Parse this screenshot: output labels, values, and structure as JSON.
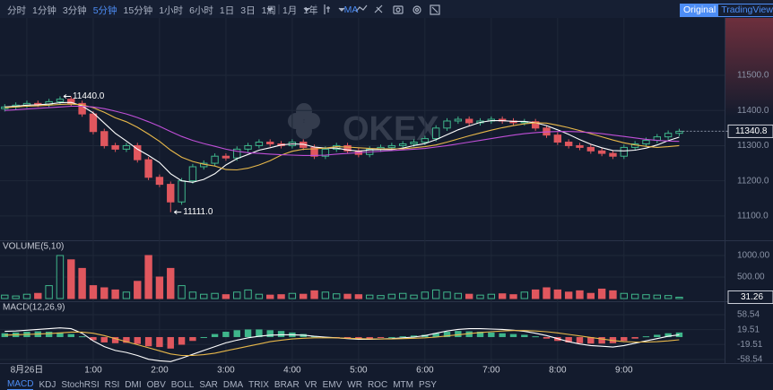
{
  "toolbar": {
    "intervals": [
      "分时",
      "1分钟",
      "3分钟",
      "5分钟",
      "15分钟",
      "1小时",
      "6小时",
      "1日",
      "3日",
      "1周",
      "1月",
      "1年"
    ],
    "active_interval": 3,
    "indicator": "MA",
    "view_tabs": [
      "Original",
      "TradingView"
    ]
  },
  "indicators": [
    "MACD",
    "KDJ",
    "StochRSI",
    "RSI",
    "DMI",
    "OBV",
    "BOLL",
    "SAR",
    "DMA",
    "TRIX",
    "BRAR",
    "VR",
    "EMV",
    "WR",
    "ROC",
    "MTM",
    "PSY"
  ],
  "watermark": "OKEX",
  "chart_data": [
    {
      "type": "candlestick",
      "up_color": "#3fb68b",
      "down_color": "#e0575e",
      "open": [
        11405,
        11410,
        11415,
        11420,
        11418,
        11425,
        11432,
        11420,
        11390,
        11340,
        11300,
        11290,
        11300,
        11260,
        11210,
        11190,
        11140,
        11200,
        11240,
        11250,
        11270,
        11265,
        11290,
        11300,
        11310,
        11305,
        11300,
        11310,
        11295,
        11270,
        11290,
        11300,
        11285,
        11275,
        11290,
        11295,
        11300,
        11305,
        11310,
        11320,
        11350,
        11370,
        11375,
        11365,
        11370,
        11375,
        11370,
        11365,
        11368,
        11350,
        11330,
        11310,
        11300,
        11295,
        11285,
        11278,
        11270,
        11295,
        11305,
        11315,
        11325,
        11335
      ],
      "high": [
        11418,
        11423,
        11428,
        11428,
        11433,
        11440,
        11440,
        11428,
        11398,
        11348,
        11308,
        11308,
        11308,
        11268,
        11218,
        11198,
        11208,
        11248,
        11258,
        11278,
        11278,
        11298,
        11308,
        11318,
        11318,
        11313,
        11318,
        11318,
        11303,
        11298,
        11308,
        11308,
        11293,
        11298,
        11303,
        11308,
        11313,
        11318,
        11328,
        11358,
        11378,
        11383,
        11383,
        11378,
        11383,
        11383,
        11378,
        11376,
        11376,
        11358,
        11338,
        11318,
        11308,
        11303,
        11293,
        11286,
        11303,
        11313,
        11323,
        11333,
        11343,
        11348
      ],
      "low": [
        11397,
        11402,
        11407,
        11410,
        11410,
        11417,
        11412,
        11382,
        11332,
        11292,
        11282,
        11282,
        11252,
        11202,
        11182,
        11111,
        11132,
        11192,
        11232,
        11242,
        11257,
        11257,
        11282,
        11292,
        11297,
        11292,
        11292,
        11287,
        11262,
        11262,
        11282,
        11277,
        11267,
        11267,
        11282,
        11287,
        11292,
        11297,
        11302,
        11312,
        11342,
        11362,
        11357,
        11357,
        11362,
        11362,
        11357,
        11357,
        11342,
        11322,
        11302,
        11292,
        11287,
        11277,
        11270,
        11262,
        11262,
        11287,
        11297,
        11307,
        11317,
        11327
      ],
      "close": [
        11410,
        11415,
        11420,
        11418,
        11425,
        11432,
        11420,
        11390,
        11340,
        11300,
        11290,
        11300,
        11260,
        11210,
        11190,
        11140,
        11200,
        11240,
        11250,
        11270,
        11265,
        11290,
        11300,
        11310,
        11305,
        11300,
        11310,
        11295,
        11270,
        11290,
        11300,
        11285,
        11275,
        11290,
        11295,
        11300,
        11305,
        11310,
        11320,
        11350,
        11370,
        11375,
        11365,
        11370,
        11375,
        11370,
        11365,
        11368,
        11350,
        11330,
        11310,
        11300,
        11295,
        11285,
        11278,
        11270,
        11295,
        11305,
        11315,
        11325,
        11335,
        11340.8
      ],
      "series": [
        {
          "color": "#ffffff",
          "values": [
            11410,
            11412,
            11415,
            11416,
            11418,
            11422,
            11423,
            11413,
            11393,
            11364,
            11335,
            11313,
            11290,
            11272,
            11252,
            11220,
            11200,
            11196,
            11204,
            11220,
            11245,
            11263,
            11275,
            11287,
            11294,
            11302,
            11305,
            11304,
            11296,
            11293,
            11293,
            11288,
            11284,
            11288,
            11289,
            11289,
            11293,
            11300,
            11306,
            11317,
            11331,
            11345,
            11356,
            11366,
            11371,
            11371,
            11369,
            11369,
            11365,
            11357,
            11345,
            11332,
            11317,
            11304,
            11294,
            11286,
            11285,
            11287,
            11293,
            11302,
            11314,
            11324
          ]
        },
        {
          "color": "#e8b84a",
          "values": [
            11408,
            11410,
            11412,
            11413,
            11415,
            11417,
            11418,
            11416,
            11408,
            11395,
            11379,
            11368,
            11352,
            11333,
            11312,
            11287,
            11267,
            11255,
            11247,
            11242,
            11232,
            11231,
            11236,
            11245,
            11257,
            11273,
            11284,
            11290,
            11291,
            11293,
            11297,
            11296,
            11294,
            11292,
            11291,
            11291,
            11291,
            11294,
            11297,
            11302,
            11310,
            11319,
            11328,
            11336,
            11344,
            11351,
            11357,
            11362,
            11365,
            11364,
            11358,
            11351,
            11343,
            11334,
            11325,
            11316,
            11308,
            11302,
            11298,
            11295,
            11297,
            11300
          ]
        },
        {
          "color": "#c04fd8",
          "values": [
            11400,
            11402,
            11404,
            11406,
            11408,
            11410,
            11412,
            11412,
            11410,
            11405,
            11398,
            11390,
            11380,
            11368,
            11355,
            11340,
            11326,
            11315,
            11306,
            11298,
            11290,
            11284,
            11280,
            11278,
            11276,
            11274,
            11273,
            11272,
            11272,
            11273,
            11276,
            11278,
            11280,
            11282,
            11284,
            11286,
            11288,
            11290,
            11292,
            11296,
            11300,
            11305,
            11310,
            11315,
            11320,
            11325,
            11330,
            11334,
            11337,
            11339,
            11340,
            11340,
            11339,
            11337,
            11334,
            11330,
            11326,
            11322,
            11318,
            11315,
            11313,
            11312
          ]
        }
      ],
      "annotations": [
        {
          "value": 11440,
          "label": "11440.0"
        },
        {
          "value": 11111,
          "label": "11111.0"
        }
      ],
      "last_price": 11340.8,
      "ylim": [
        11031,
        11663
      ],
      "yticks": [
        {
          "value": 11100,
          "label": "11100.0"
        },
        {
          "value": 11200,
          "label": "11200.0"
        },
        {
          "value": 11300,
          "label": "11300.0"
        },
        {
          "value": 11400,
          "label": "11400.0"
        },
        {
          "value": 11500,
          "label": "11500.0"
        }
      ]
    },
    {
      "type": "bar",
      "title": "VOLUME(5,10)",
      "values": [
        80,
        60,
        100,
        120,
        300,
        1000,
        900,
        700,
        300,
        250,
        200,
        150,
        400,
        1000,
        500,
        700,
        300,
        150,
        100,
        120,
        90,
        150,
        200,
        100,
        80,
        90,
        120,
        100,
        180,
        150,
        110,
        100,
        90,
        80,
        70,
        100,
        120,
        80,
        150,
        200,
        150,
        120,
        100,
        80,
        100,
        110,
        90,
        150,
        200,
        250,
        200,
        150,
        180,
        120,
        220,
        180,
        120,
        100,
        90,
        80,
        70,
        31.26
      ],
      "last_value": 31.26,
      "ylim": [
        0,
        1312
      ],
      "yticks": [
        {
          "value": 500,
          "label": "500.00"
        },
        {
          "value": 1000,
          "label": "1000.00"
        }
      ]
    },
    {
      "type": "macd",
      "title": "MACD(12,26,9)",
      "histogram": [
        10,
        12,
        14,
        15,
        14,
        12,
        8,
        2,
        -8,
        -14,
        -16,
        -15,
        -18,
        -24,
        -26,
        -30,
        -20,
        -10,
        0,
        8,
        14,
        18,
        20,
        20,
        18,
        16,
        12,
        8,
        2,
        0,
        -2,
        -4,
        -5,
        -4,
        -2,
        0,
        2,
        4,
        6,
        10,
        14,
        16,
        15,
        14,
        12,
        10,
        8,
        6,
        2,
        -4,
        -10,
        -14,
        -16,
        -17,
        -17,
        -16,
        -10,
        -4,
        2,
        6,
        10,
        12
      ],
      "series": [
        {
          "color": "#ffffff",
          "values": [
            15,
            16,
            18,
            20,
            22,
            24,
            22,
            10,
            -10,
            -25,
            -35,
            -40,
            -48,
            -58,
            -62,
            -64,
            -55,
            -45,
            -35,
            -25,
            -15,
            -8,
            -2,
            2,
            5,
            6,
            6,
            5,
            2,
            0,
            -2,
            -4,
            -6,
            -6,
            -5,
            -4,
            -2,
            0,
            4,
            10,
            16,
            20,
            22,
            22,
            21,
            20,
            18,
            15,
            10,
            4,
            -4,
            -12,
            -18,
            -22,
            -24,
            -26,
            -22,
            -16,
            -10,
            -4,
            2,
            6
          ]
        },
        {
          "color": "#e8b84a",
          "values": [
            5,
            6,
            7,
            8,
            9,
            11,
            13,
            13,
            10,
            4,
            -4,
            -12,
            -20,
            -28,
            -36,
            -44,
            -48,
            -48,
            -46,
            -42,
            -36,
            -30,
            -24,
            -18,
            -12,
            -8,
            -5,
            -3,
            -2,
            -2,
            -2,
            -3,
            -4,
            -5,
            -5,
            -5,
            -4,
            -3,
            -2,
            0,
            3,
            6,
            9,
            12,
            14,
            16,
            17,
            17,
            16,
            14,
            11,
            7,
            3,
            -1,
            -5,
            -9,
            -12,
            -13,
            -13,
            -12,
            -10,
            -7
          ]
        }
      ],
      "ylim": [
        -68,
        89
      ],
      "yticks": [
        58.54,
        19.51,
        -19.51,
        -58.54
      ],
      "xlim": [
        -0.43,
        65.1
      ],
      "xticks": [
        {
          "value": 2,
          "label": "8月26日"
        },
        {
          "value": 8,
          "label": "1:00"
        },
        {
          "value": 14,
          "label": "2:00"
        },
        {
          "value": 20,
          "label": "3:00"
        },
        {
          "value": 26,
          "label": "4:00"
        },
        {
          "value": 32,
          "label": "5:00"
        },
        {
          "value": 38,
          "label": "6:00"
        },
        {
          "value": 44,
          "label": "7:00"
        },
        {
          "value": 50,
          "label": "8:00"
        },
        {
          "value": 56,
          "label": "9:00"
        }
      ]
    }
  ]
}
